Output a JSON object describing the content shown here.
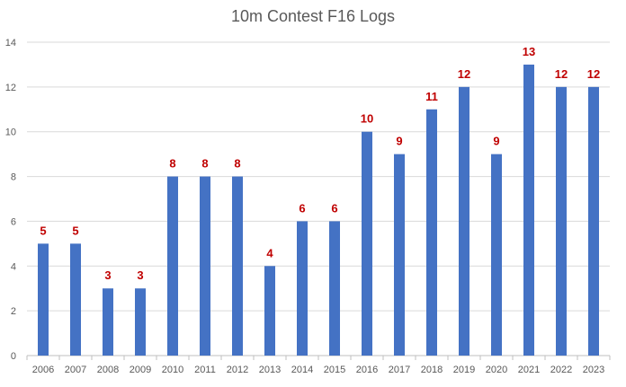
{
  "chart_data": {
    "type": "bar",
    "title": "10m Contest F16 Logs",
    "xlabel": "",
    "ylabel": "",
    "categories": [
      "2006",
      "2007",
      "2008",
      "2009",
      "2010",
      "2011",
      "2012",
      "2013",
      "2014",
      "2015",
      "2016",
      "2017",
      "2018",
      "2019",
      "2020",
      "2021",
      "2022",
      "2023"
    ],
    "values": [
      5,
      5,
      3,
      3,
      8,
      8,
      8,
      4,
      6,
      6,
      10,
      9,
      11,
      12,
      9,
      13,
      12,
      12
    ],
    "ylim": [
      0,
      14
    ],
    "yticks": [
      0,
      2,
      4,
      6,
      8,
      10,
      12,
      14
    ],
    "grid": true,
    "legend": "none",
    "colors": {
      "bar": "#4472C4",
      "data_label": "#C00000",
      "grid": "#D9D9D9",
      "axis_text": "#595959"
    }
  }
}
